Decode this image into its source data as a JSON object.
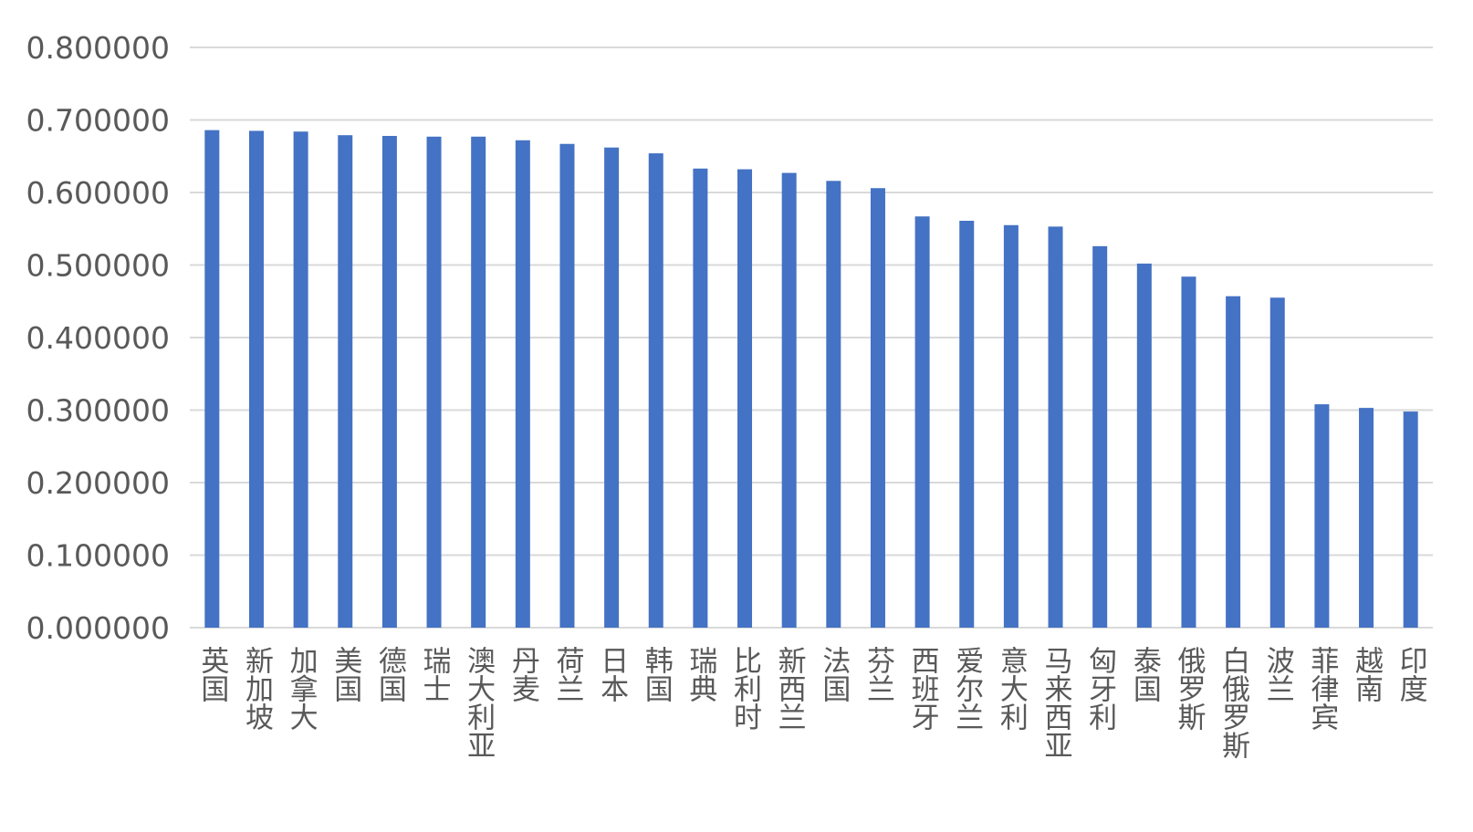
{
  "chart_data": {
    "type": "bar",
    "title": "",
    "xlabel": "",
    "ylabel": "",
    "ylim": [
      0,
      0.8
    ],
    "yticks": [
      "0.000000",
      "0.100000",
      "0.200000",
      "0.300000",
      "0.400000",
      "0.500000",
      "0.600000",
      "0.700000",
      "0.800000"
    ],
    "grid": true,
    "legend": "none",
    "bar_color": "#4472c4",
    "categories": [
      "英国",
      "新加坡",
      "加拿大",
      "美国",
      "德国",
      "瑞士",
      "澳大利亚",
      "丹麦",
      "荷兰",
      "日本",
      "韩国",
      "瑞典",
      "比利时",
      "新西兰",
      "法国",
      "芬兰",
      "西班牙",
      "爱尔兰",
      "意大利",
      "马来西亚",
      "匈牙利",
      "泰国",
      "俄罗斯",
      "白俄罗斯",
      "波兰",
      "菲律宾",
      "越南",
      "印度"
    ],
    "values": [
      0.686,
      0.685,
      0.684,
      0.679,
      0.678,
      0.677,
      0.677,
      0.672,
      0.667,
      0.662,
      0.654,
      0.633,
      0.632,
      0.627,
      0.616,
      0.606,
      0.567,
      0.561,
      0.555,
      0.553,
      0.526,
      0.502,
      0.484,
      0.457,
      0.455,
      0.308,
      0.303,
      0.298
    ]
  }
}
